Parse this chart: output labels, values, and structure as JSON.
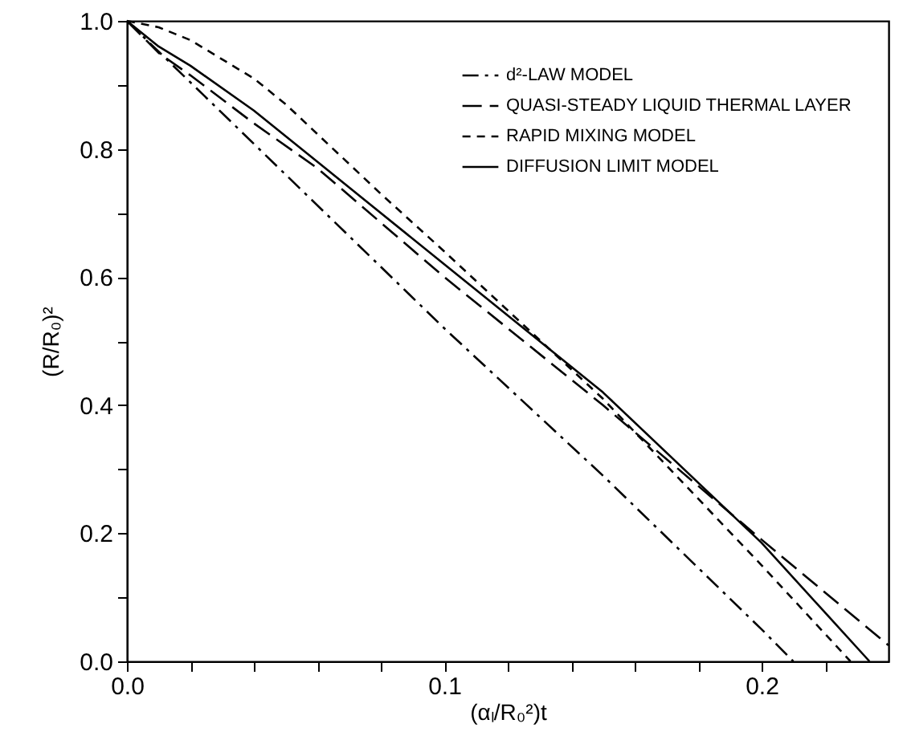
{
  "chart_data": {
    "type": "line",
    "xlabel": "(αₗ/R₀²)t",
    "ylabel": "(R/R₀)²",
    "xlim": [
      0,
      0.24
    ],
    "ylim": [
      0,
      1.0
    ],
    "xticks": [
      {
        "value": 0,
        "label": "0.0"
      },
      {
        "value": 0.02,
        "label": null
      },
      {
        "value": 0.04,
        "label": null
      },
      {
        "value": 0.06,
        "label": null
      },
      {
        "value": 0.08,
        "label": null
      },
      {
        "value": 0.1,
        "label": "0.1"
      },
      {
        "value": 0.12,
        "label": null
      },
      {
        "value": 0.14,
        "label": null
      },
      {
        "value": 0.16,
        "label": null
      },
      {
        "value": 0.18,
        "label": null
      },
      {
        "value": 0.2,
        "label": "0.2"
      },
      {
        "value": 0.22,
        "label": null
      }
    ],
    "yticks": [
      {
        "value": 0,
        "label": "0.0"
      },
      {
        "value": 0.1,
        "label": null
      },
      {
        "value": 0.2,
        "label": "0.2"
      },
      {
        "value": 0.3,
        "label": null
      },
      {
        "value": 0.4,
        "label": "0.4"
      },
      {
        "value": 0.5,
        "label": null
      },
      {
        "value": 0.6,
        "label": "0.6"
      },
      {
        "value": 0.7,
        "label": null
      },
      {
        "value": 0.8,
        "label": "0.8"
      },
      {
        "value": 0.9,
        "label": null
      },
      {
        "value": 1.0,
        "label": "1.0"
      }
    ],
    "grid": false,
    "legend": "top right",
    "marker": "none",
    "series": [
      {
        "name": "d²-LAW MODEL",
        "color": "#000000",
        "line_style": "dashdot",
        "x": [
          0,
          0.05,
          0.1,
          0.15,
          0.2,
          0.21
        ],
        "values": [
          1.0,
          0.76,
          0.52,
          0.29,
          0.05,
          0.0
        ]
      },
      {
        "name": "QUASI-STEADY LIQUID THERMAL LAYER",
        "color": "#000000",
        "line_style": "longdash",
        "x": [
          0,
          0.01,
          0.02,
          0.04,
          0.06,
          0.1,
          0.15,
          0.2,
          0.24
        ],
        "values": [
          1.0,
          0.95,
          0.915,
          0.84,
          0.77,
          0.6,
          0.4,
          0.19,
          0.025
        ]
      },
      {
        "name": "RAPID MIXING MODEL",
        "color": "#000000",
        "line_style": "dashed",
        "x": [
          0,
          0.01,
          0.02,
          0.04,
          0.05,
          0.08,
          0.1,
          0.15,
          0.2,
          0.228
        ],
        "values": [
          1.0,
          0.99,
          0.97,
          0.91,
          0.87,
          0.73,
          0.64,
          0.41,
          0.15,
          0.0
        ]
      },
      {
        "name": "DIFFUSION LIMIT MODEL",
        "color": "#000000",
        "line_style": "solid",
        "x": [
          0,
          0.01,
          0.02,
          0.04,
          0.06,
          0.1,
          0.15,
          0.2,
          0.234
        ],
        "values": [
          1.0,
          0.96,
          0.93,
          0.86,
          0.78,
          0.62,
          0.42,
          0.185,
          0.0
        ]
      }
    ]
  }
}
